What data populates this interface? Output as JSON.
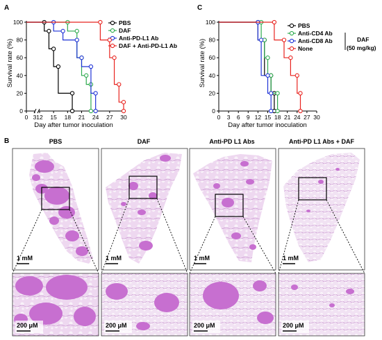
{
  "panel_labels": [
    "A",
    "B",
    "C"
  ],
  "chart_data": [
    {
      "type": "line",
      "subtype": "kaplan-meier",
      "ylabel": "Survival rate (%)",
      "xlabel": "Day after tumor inoculation",
      "xticks": [
        "0",
        "3",
        "12",
        "15",
        "18",
        "21",
        "24",
        "27",
        "30"
      ],
      "yticks": [
        "0",
        "20",
        "40",
        "60",
        "80",
        "100"
      ],
      "x_axis_break": true,
      "legend_placement": "top-right",
      "series": [
        {
          "name": "PBS",
          "color": "#000000",
          "marker": "open-circle",
          "x": [
            0,
            13,
            13,
            14,
            14,
            15,
            15,
            16,
            16,
            19,
            19
          ],
          "y": [
            100,
            100,
            90,
            90,
            70,
            70,
            50,
            50,
            20,
            20,
            0
          ]
        },
        {
          "name": "DAF",
          "color": "#2eaa4f",
          "marker": "open-circle",
          "x": [
            0,
            18,
            18,
            20,
            20,
            21,
            21,
            22,
            22,
            23,
            23
          ],
          "y": [
            100,
            100,
            90,
            90,
            60,
            60,
            40,
            40,
            30,
            30,
            0
          ]
        },
        {
          "name": "Anti-PD-L1 Ab",
          "color": "#1f33d6",
          "marker": "open-circle",
          "x": [
            0,
            15,
            15,
            17,
            17,
            20,
            20,
            21,
            21,
            23,
            23,
            24,
            24
          ],
          "y": [
            100,
            100,
            90,
            90,
            80,
            80,
            60,
            60,
            50,
            50,
            20,
            20,
            0
          ]
        },
        {
          "name": "DAF + Anti-PD-L1 Ab",
          "color": "#e8231f",
          "marker": "open-circle",
          "x": [
            0,
            25,
            25,
            27,
            27,
            28,
            28,
            29,
            29,
            30,
            30
          ],
          "y": [
            100,
            100,
            80,
            80,
            60,
            60,
            30,
            30,
            10,
            10,
            0
          ]
        }
      ]
    },
    {
      "type": "line",
      "subtype": "kaplan-meier",
      "ylabel": "Survival rate (%)",
      "xlabel": "Day after tumor inoculation",
      "xticks": [
        "0",
        "3",
        "6",
        "9",
        "12",
        "15",
        "18",
        "21",
        "24",
        "27",
        "30"
      ],
      "yticks": [
        "0",
        "20",
        "40",
        "60",
        "80",
        "100"
      ],
      "legend_placement": "top-right",
      "legend_group_label": "DAF",
      "legend_group_sublabel": "(50 mg/kg)",
      "series": [
        {
          "name": "PBS",
          "color": "#000000",
          "marker": "open-circle",
          "x": [
            0,
            12,
            12,
            14,
            14,
            16,
            16,
            17,
            17
          ],
          "y": [
            100,
            100,
            80,
            80,
            40,
            40,
            20,
            20,
            0
          ]
        },
        {
          "name": "Anti-CD4 Ab",
          "color": "#2eaa4f",
          "marker": "open-circle",
          "x": [
            0,
            13,
            13,
            14,
            14,
            15,
            15,
            16,
            16,
            18,
            18
          ],
          "y": [
            100,
            100,
            80,
            80,
            60,
            60,
            40,
            40,
            20,
            20,
            0
          ]
        },
        {
          "name": "Anti-CD8 Ab",
          "color": "#1f33d6",
          "marker": "open-circle",
          "x": [
            0,
            12,
            12,
            13,
            13,
            15,
            15,
            16,
            16
          ],
          "y": [
            100,
            100,
            80,
            80,
            40,
            40,
            20,
            20,
            0
          ]
        },
        {
          "name": "None",
          "color": "#e8231f",
          "marker": "open-circle",
          "x": [
            0,
            17,
            17,
            20,
            20,
            22,
            22,
            24,
            24,
            25,
            25
          ],
          "y": [
            100,
            100,
            80,
            80,
            60,
            60,
            40,
            40,
            20,
            20,
            0
          ]
        }
      ]
    }
  ],
  "histology": {
    "titles": [
      "PBS",
      "DAF",
      "Anti-PD L1 Abs",
      "Anti-PD L1 Abs + DAF"
    ],
    "scale_top": "1 mM",
    "scale_bottom": "200 μM",
    "colors": {
      "tissue": "#ddbbe4",
      "dense": "#c76fd0",
      "background": "#f4ecf5",
      "purple_deep": "#b24fc1"
    }
  }
}
